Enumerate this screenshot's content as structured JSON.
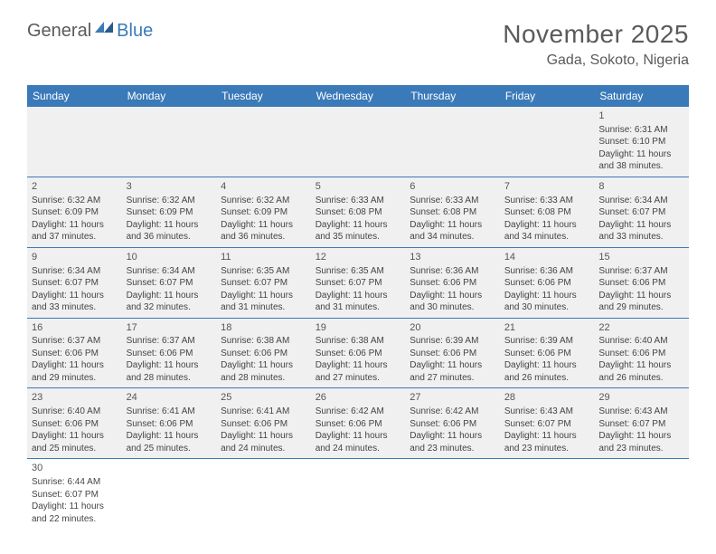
{
  "brand": {
    "part1": "General",
    "part2": "Blue"
  },
  "title": "November 2025",
  "location": "Gada, Sokoto, Nigeria",
  "colors": {
    "header_bg": "#3a7ab8",
    "header_text": "#ffffff",
    "cell_bg": "#f0f0f0",
    "divider": "#3a7ab8",
    "text": "#444444",
    "title_text": "#5a5a5a"
  },
  "daysOfWeek": [
    "Sunday",
    "Monday",
    "Tuesday",
    "Wednesday",
    "Thursday",
    "Friday",
    "Saturday"
  ],
  "grid": [
    [
      null,
      null,
      null,
      null,
      null,
      null,
      {
        "n": "1",
        "sr": "6:31 AM",
        "ss": "6:10 PM",
        "dl": "11 hours and 38 minutes."
      }
    ],
    [
      {
        "n": "2",
        "sr": "6:32 AM",
        "ss": "6:09 PM",
        "dl": "11 hours and 37 minutes."
      },
      {
        "n": "3",
        "sr": "6:32 AM",
        "ss": "6:09 PM",
        "dl": "11 hours and 36 minutes."
      },
      {
        "n": "4",
        "sr": "6:32 AM",
        "ss": "6:09 PM",
        "dl": "11 hours and 36 minutes."
      },
      {
        "n": "5",
        "sr": "6:33 AM",
        "ss": "6:08 PM",
        "dl": "11 hours and 35 minutes."
      },
      {
        "n": "6",
        "sr": "6:33 AM",
        "ss": "6:08 PM",
        "dl": "11 hours and 34 minutes."
      },
      {
        "n": "7",
        "sr": "6:33 AM",
        "ss": "6:08 PM",
        "dl": "11 hours and 34 minutes."
      },
      {
        "n": "8",
        "sr": "6:34 AM",
        "ss": "6:07 PM",
        "dl": "11 hours and 33 minutes."
      }
    ],
    [
      {
        "n": "9",
        "sr": "6:34 AM",
        "ss": "6:07 PM",
        "dl": "11 hours and 33 minutes."
      },
      {
        "n": "10",
        "sr": "6:34 AM",
        "ss": "6:07 PM",
        "dl": "11 hours and 32 minutes."
      },
      {
        "n": "11",
        "sr": "6:35 AM",
        "ss": "6:07 PM",
        "dl": "11 hours and 31 minutes."
      },
      {
        "n": "12",
        "sr": "6:35 AM",
        "ss": "6:07 PM",
        "dl": "11 hours and 31 minutes."
      },
      {
        "n": "13",
        "sr": "6:36 AM",
        "ss": "6:06 PM",
        "dl": "11 hours and 30 minutes."
      },
      {
        "n": "14",
        "sr": "6:36 AM",
        "ss": "6:06 PM",
        "dl": "11 hours and 30 minutes."
      },
      {
        "n": "15",
        "sr": "6:37 AM",
        "ss": "6:06 PM",
        "dl": "11 hours and 29 minutes."
      }
    ],
    [
      {
        "n": "16",
        "sr": "6:37 AM",
        "ss": "6:06 PM",
        "dl": "11 hours and 29 minutes."
      },
      {
        "n": "17",
        "sr": "6:37 AM",
        "ss": "6:06 PM",
        "dl": "11 hours and 28 minutes."
      },
      {
        "n": "18",
        "sr": "6:38 AM",
        "ss": "6:06 PM",
        "dl": "11 hours and 28 minutes."
      },
      {
        "n": "19",
        "sr": "6:38 AM",
        "ss": "6:06 PM",
        "dl": "11 hours and 27 minutes."
      },
      {
        "n": "20",
        "sr": "6:39 AM",
        "ss": "6:06 PM",
        "dl": "11 hours and 27 minutes."
      },
      {
        "n": "21",
        "sr": "6:39 AM",
        "ss": "6:06 PM",
        "dl": "11 hours and 26 minutes."
      },
      {
        "n": "22",
        "sr": "6:40 AM",
        "ss": "6:06 PM",
        "dl": "11 hours and 26 minutes."
      }
    ],
    [
      {
        "n": "23",
        "sr": "6:40 AM",
        "ss": "6:06 PM",
        "dl": "11 hours and 25 minutes."
      },
      {
        "n": "24",
        "sr": "6:41 AM",
        "ss": "6:06 PM",
        "dl": "11 hours and 25 minutes."
      },
      {
        "n": "25",
        "sr": "6:41 AM",
        "ss": "6:06 PM",
        "dl": "11 hours and 24 minutes."
      },
      {
        "n": "26",
        "sr": "6:42 AM",
        "ss": "6:06 PM",
        "dl": "11 hours and 24 minutes."
      },
      {
        "n": "27",
        "sr": "6:42 AM",
        "ss": "6:06 PM",
        "dl": "11 hours and 23 minutes."
      },
      {
        "n": "28",
        "sr": "6:43 AM",
        "ss": "6:07 PM",
        "dl": "11 hours and 23 minutes."
      },
      {
        "n": "29",
        "sr": "6:43 AM",
        "ss": "6:07 PM",
        "dl": "11 hours and 23 minutes."
      }
    ],
    [
      {
        "n": "30",
        "sr": "6:44 AM",
        "ss": "6:07 PM",
        "dl": "11 hours and 22 minutes."
      },
      null,
      null,
      null,
      null,
      null,
      null
    ]
  ],
  "labels": {
    "sunrise": "Sunrise:",
    "sunset": "Sunset:",
    "daylight": "Daylight:"
  }
}
